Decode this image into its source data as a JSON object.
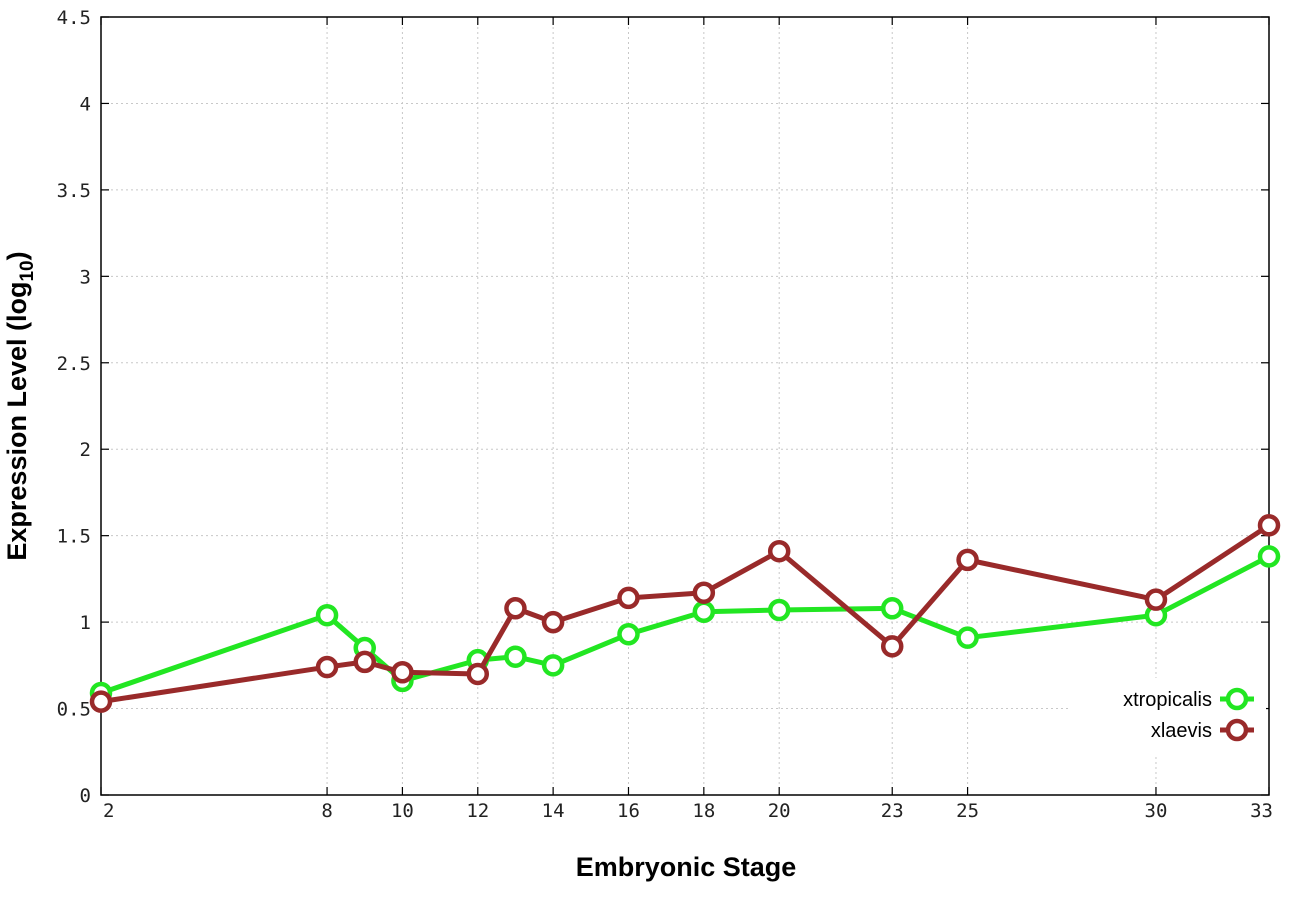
{
  "chart_data": {
    "type": "line",
    "xlabel": "Embryonic Stage",
    "ylabel_main": "Expression Level (log",
    "ylabel_sub": "10",
    "ylabel_close": ")",
    "xlim": [
      2,
      33
    ],
    "ylim": [
      0,
      4.5
    ],
    "x_ticks": [
      2,
      8,
      10,
      12,
      14,
      16,
      18,
      20,
      23,
      25,
      30,
      33
    ],
    "x_tick_labels": [
      "2",
      "8",
      "10",
      "12",
      "14",
      "16",
      "18",
      "20",
      "23",
      "25",
      "30",
      "33"
    ],
    "y_ticks": [
      0,
      0.5,
      1,
      1.5,
      2,
      2.5,
      3,
      3.5,
      4,
      4.5
    ],
    "y_tick_labels": [
      "0",
      "0.5",
      "1",
      "1.5",
      "2",
      "2.5",
      "3",
      "3.5",
      "4",
      "4.5"
    ],
    "grid": true,
    "legend_position": "bottom-right",
    "series": [
      {
        "name": "xtropicalis",
        "color": "#22e622",
        "points": [
          [
            2,
            0.59
          ],
          [
            8,
            1.04
          ],
          [
            9,
            0.85
          ],
          [
            10,
            0.66
          ],
          [
            12,
            0.78
          ],
          [
            13,
            0.8
          ],
          [
            14,
            0.75
          ],
          [
            16,
            0.93
          ],
          [
            18,
            1.06
          ],
          [
            20,
            1.07
          ],
          [
            23,
            1.08
          ],
          [
            25,
            0.91
          ],
          [
            30,
            1.04
          ],
          [
            33,
            1.38
          ]
        ]
      },
      {
        "name": "xlaevis",
        "color": "#992a2a",
        "points": [
          [
            2,
            0.54
          ],
          [
            8,
            0.74
          ],
          [
            9,
            0.77
          ],
          [
            10,
            0.71
          ],
          [
            12,
            0.7
          ],
          [
            13,
            1.08
          ],
          [
            14,
            1.0
          ],
          [
            16,
            1.14
          ],
          [
            18,
            1.17
          ],
          [
            20,
            1.41
          ],
          [
            23,
            0.86
          ],
          [
            25,
            1.36
          ],
          [
            30,
            1.13
          ],
          [
            33,
            1.56
          ]
        ]
      }
    ]
  }
}
